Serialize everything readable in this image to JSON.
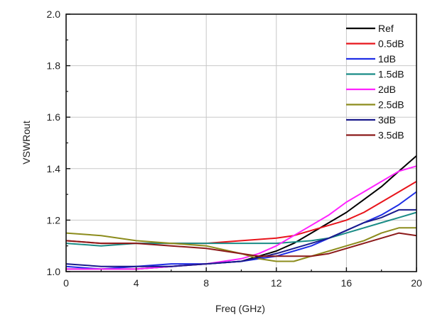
{
  "chart_data": {
    "type": "line",
    "title": "",
    "xlabel": "Freq (GHz)",
    "ylabel": "VSWRout",
    "xlim": [
      0,
      20
    ],
    "ylim": [
      1.0,
      2.0
    ],
    "xticks": [
      0,
      4,
      8,
      12,
      16,
      20
    ],
    "xtick_labels": [
      "0",
      "4",
      "8",
      "12",
      "16",
      "20"
    ],
    "yticks": [
      1.0,
      1.2,
      1.4,
      1.6,
      1.8,
      2.0
    ],
    "ytick_labels": [
      "1.0",
      "1.2",
      "1.4",
      "1.6",
      "1.8",
      "2.0"
    ],
    "grid": true,
    "legend_position": "top-right",
    "series": [
      {
        "name": "Ref",
        "color": "#000000",
        "x": [
          0,
          2,
          4,
          6,
          8,
          10,
          11,
          12,
          13,
          14,
          15,
          16,
          17,
          18,
          19,
          20
        ],
        "y": [
          1.01,
          1.01,
          1.01,
          1.02,
          1.03,
          1.04,
          1.06,
          1.08,
          1.11,
          1.15,
          1.19,
          1.23,
          1.28,
          1.33,
          1.39,
          1.45
        ]
      },
      {
        "name": "0.5dB",
        "color": "#e8141b",
        "x": [
          0,
          2,
          4,
          6,
          8,
          10,
          12,
          13,
          14,
          15,
          16,
          17,
          18,
          19,
          20
        ],
        "y": [
          1.12,
          1.11,
          1.11,
          1.11,
          1.11,
          1.12,
          1.13,
          1.14,
          1.16,
          1.18,
          1.2,
          1.23,
          1.27,
          1.31,
          1.35
        ]
      },
      {
        "name": "1dB",
        "color": "#1f2ee6",
        "x": [
          0,
          2,
          4,
          6,
          8,
          10,
          12,
          13,
          14,
          15,
          16,
          17,
          18,
          19,
          20
        ],
        "y": [
          1.02,
          1.01,
          1.02,
          1.03,
          1.03,
          1.04,
          1.06,
          1.08,
          1.1,
          1.13,
          1.16,
          1.19,
          1.22,
          1.26,
          1.31
        ]
      },
      {
        "name": "1.5dB",
        "color": "#1a8c86",
        "x": [
          0,
          2,
          4,
          6,
          8,
          10,
          12,
          14,
          15,
          16,
          17,
          18,
          19,
          20
        ],
        "y": [
          1.11,
          1.1,
          1.11,
          1.11,
          1.11,
          1.11,
          1.11,
          1.12,
          1.13,
          1.15,
          1.17,
          1.19,
          1.21,
          1.23
        ]
      },
      {
        "name": "2dB",
        "color": "#ff22ff",
        "x": [
          0,
          2,
          4,
          6,
          8,
          10,
          11,
          12,
          13,
          14,
          15,
          16,
          17,
          18,
          19,
          20
        ],
        "y": [
          1.01,
          1.01,
          1.01,
          1.02,
          1.03,
          1.05,
          1.07,
          1.1,
          1.14,
          1.18,
          1.22,
          1.27,
          1.31,
          1.35,
          1.39,
          1.41
        ]
      },
      {
        "name": "2.5dB",
        "color": "#8c8c1c",
        "x": [
          0,
          2,
          4,
          6,
          8,
          10,
          11,
          12,
          13,
          14,
          15,
          16,
          17,
          18,
          19,
          20
        ],
        "y": [
          1.15,
          1.14,
          1.12,
          1.11,
          1.1,
          1.07,
          1.05,
          1.04,
          1.04,
          1.06,
          1.08,
          1.1,
          1.12,
          1.15,
          1.17,
          1.17
        ]
      },
      {
        "name": "3dB",
        "color": "#1a1a8c",
        "x": [
          0,
          2,
          4,
          6,
          8,
          10,
          12,
          13,
          14,
          15,
          16,
          17,
          18,
          19,
          20
        ],
        "y": [
          1.03,
          1.02,
          1.02,
          1.02,
          1.03,
          1.04,
          1.07,
          1.09,
          1.11,
          1.13,
          1.16,
          1.19,
          1.21,
          1.24,
          1.24
        ]
      },
      {
        "name": "3.5dB",
        "color": "#8c1a1a",
        "x": [
          0,
          2,
          4,
          6,
          8,
          10,
          11,
          12,
          13,
          14,
          15,
          16,
          17,
          18,
          19,
          20
        ],
        "y": [
          1.12,
          1.11,
          1.11,
          1.1,
          1.09,
          1.07,
          1.06,
          1.06,
          1.06,
          1.06,
          1.07,
          1.09,
          1.11,
          1.13,
          1.15,
          1.14
        ]
      }
    ]
  }
}
